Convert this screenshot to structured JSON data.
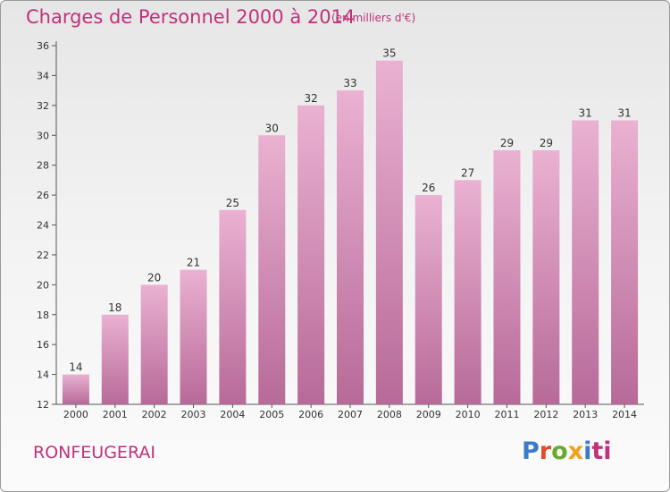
{
  "header": {
    "title": "Charges de Personnel 2000 à 2014",
    "subtitle": "(en milliers d'€)"
  },
  "footer": {
    "commune": "RONFEUGERAI",
    "logo_letters": [
      "P",
      "r",
      "o",
      "x",
      "i",
      "ti"
    ]
  },
  "colors": {
    "title": "#c0317a",
    "bar_top": "#eab1d2",
    "bar_bottom": "#b76a98"
  },
  "chart_data": {
    "type": "bar",
    "title": "Charges de Personnel 2000 à 2014",
    "subtitle": "(en milliers d'€)",
    "categories": [
      "2000",
      "2001",
      "2002",
      "2003",
      "2004",
      "2005",
      "2006",
      "2007",
      "2008",
      "2009",
      "2010",
      "2011",
      "2012",
      "2013",
      "2014"
    ],
    "values": [
      14,
      18,
      20,
      21,
      25,
      30,
      32,
      33,
      35,
      26,
      27,
      29,
      29,
      31,
      31
    ],
    "ylim": [
      12,
      36
    ],
    "yticks": [
      12,
      14,
      16,
      18,
      20,
      22,
      24,
      26,
      28,
      30,
      32,
      34,
      36
    ],
    "xlabel": "",
    "ylabel": "",
    "grid": false
  }
}
